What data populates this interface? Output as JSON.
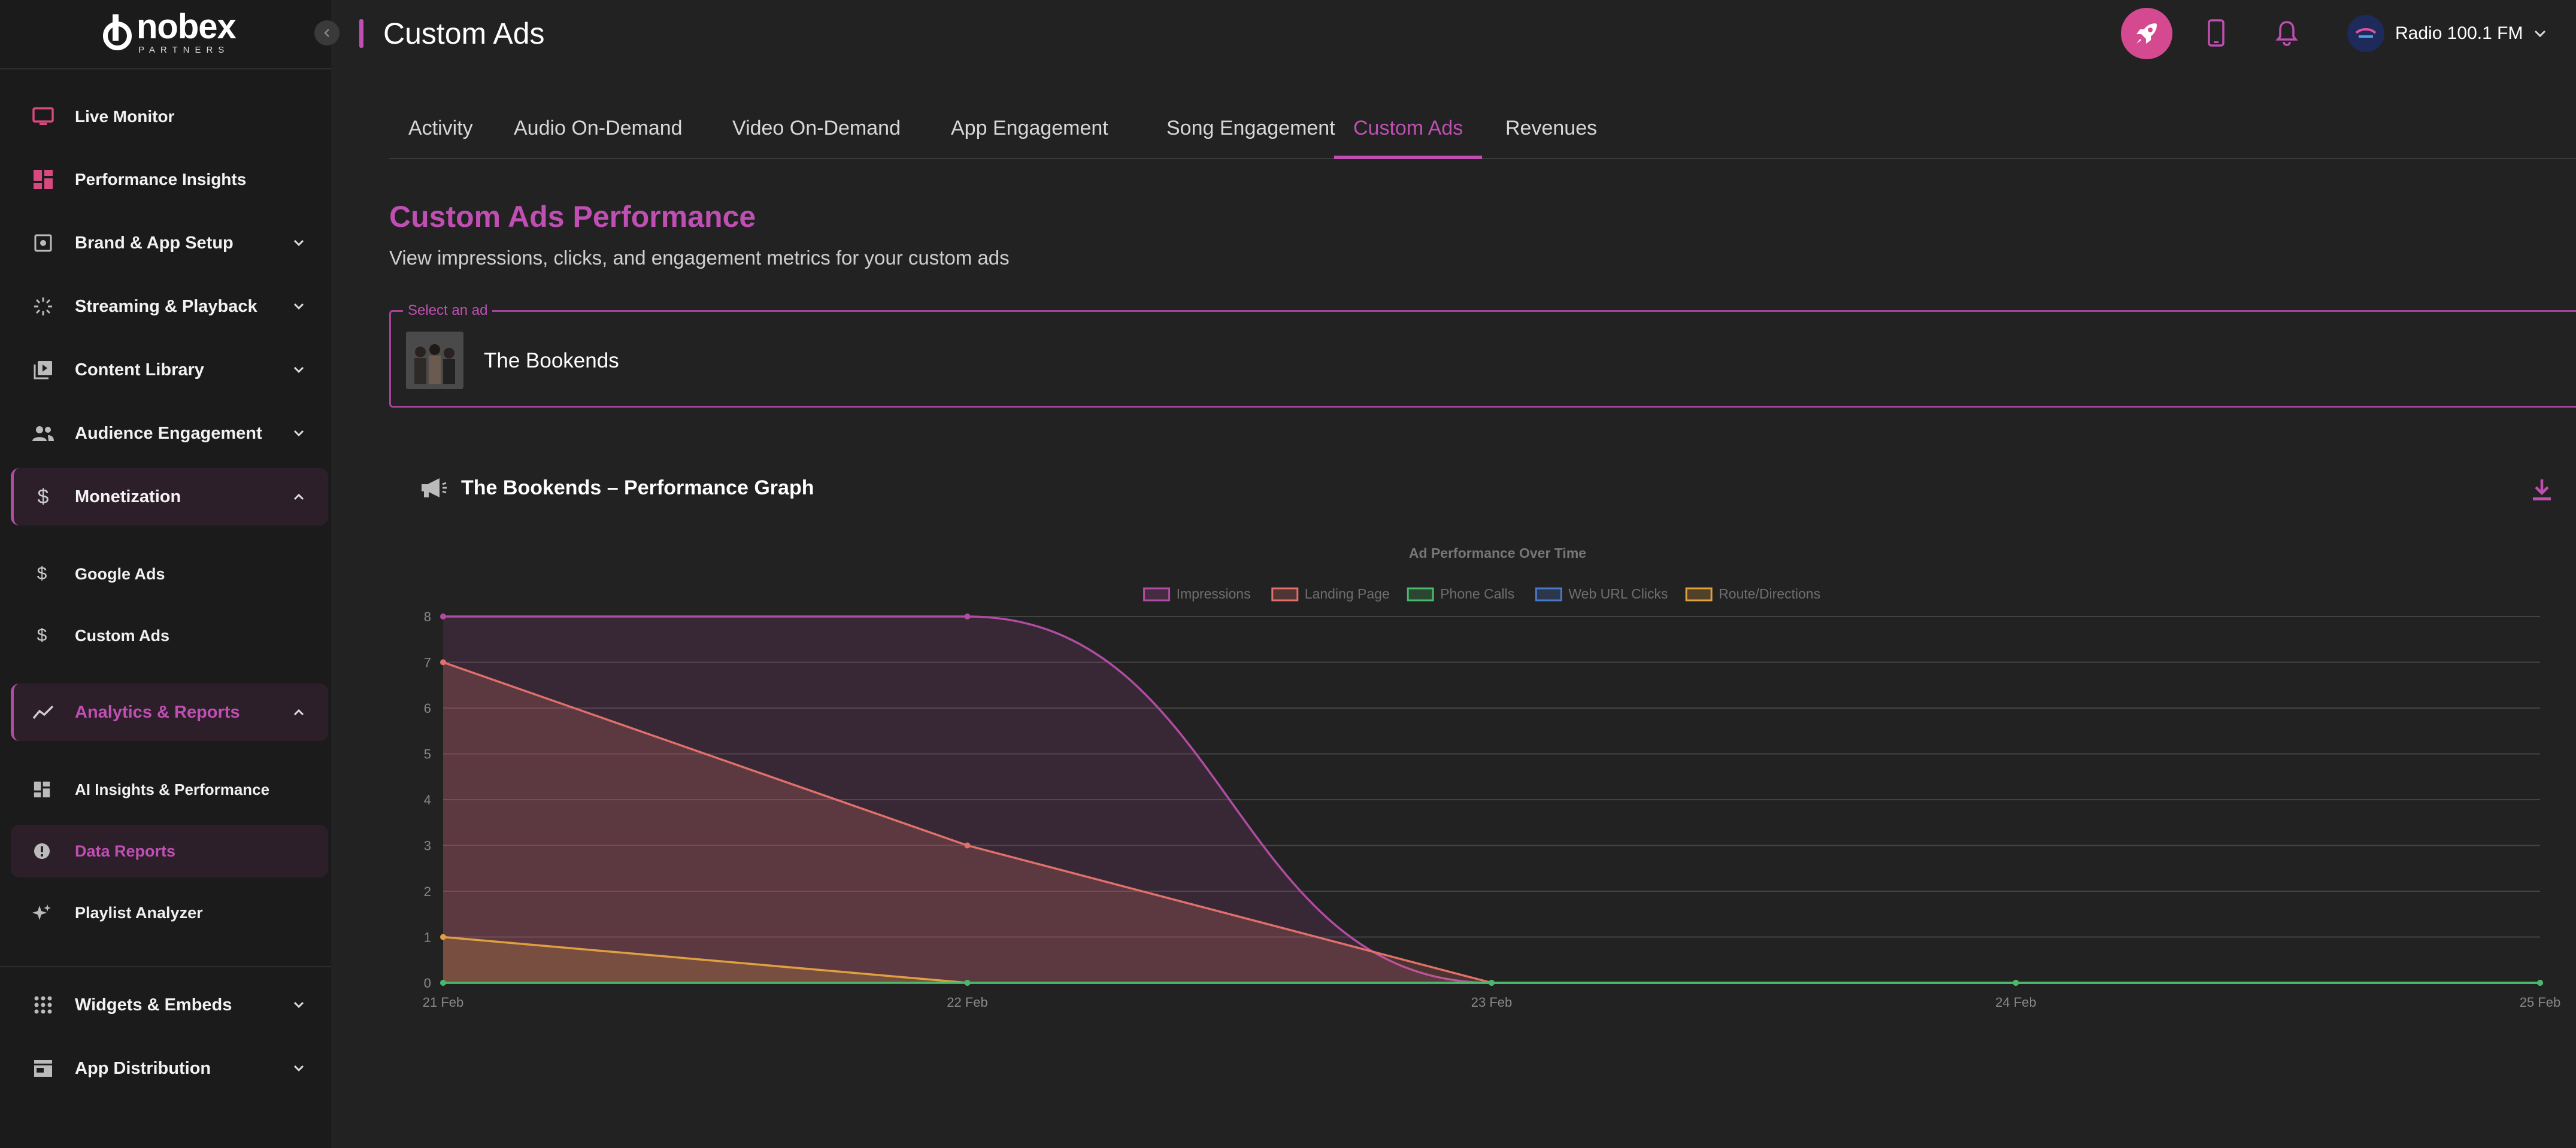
{
  "brand": {
    "name": "nobex",
    "sub": "PARTNERS"
  },
  "sidebar": {
    "items": [
      {
        "label": "Live Monitor",
        "icon": "monitor-icon"
      },
      {
        "label": "Performance Insights",
        "icon": "dashboard-icon"
      },
      {
        "label": "Brand & App Setup",
        "icon": "brand-setup-icon"
      },
      {
        "label": "Streaming & Playback",
        "icon": "streaming-icon"
      },
      {
        "label": "Content Library",
        "icon": "library-icon"
      },
      {
        "label": "Audience Engagement",
        "icon": "people-icon"
      },
      {
        "label": "Monetization",
        "icon": "dollar-icon"
      },
      {
        "label": "Google Ads",
        "icon": "dollar-icon"
      },
      {
        "label": "Custom Ads",
        "icon": "dollar-icon"
      },
      {
        "label": "Analytics & Reports",
        "icon": "analytics-icon"
      },
      {
        "label": "AI Insights & Performance",
        "icon": "dashboard-icon"
      },
      {
        "label": "Data Reports",
        "icon": "alert-circle-icon"
      },
      {
        "label": "Playlist Analyzer",
        "icon": "sparkle-icon"
      },
      {
        "label": "Widgets & Embeds",
        "icon": "grid-icon"
      },
      {
        "label": "App Distribution",
        "icon": "store-icon"
      }
    ]
  },
  "header": {
    "title": "Custom Ads",
    "station": "Radio 100.1 FM"
  },
  "tabs": [
    {
      "label": "Activity"
    },
    {
      "label": "Audio On-Demand"
    },
    {
      "label": "Video On-Demand"
    },
    {
      "label": "App Engagement"
    },
    {
      "label": "Song Engagement"
    },
    {
      "label": "Custom Ads",
      "active": true
    },
    {
      "label": "Revenues"
    }
  ],
  "main": {
    "title": "Custom Ads Performance",
    "subtitle": "View impressions, clicks, and engagement metrics for your custom ads",
    "select": {
      "label": "Select an ad",
      "value": "The Bookends"
    },
    "graph_title": "The Bookends – Performance Graph"
  },
  "colors": {
    "accent": "#c04fb3",
    "impressions": "#b04da3",
    "landing": "#e0706a",
    "phone": "#49b86a",
    "web": "#4a78c8",
    "route": "#e0a040"
  },
  "chart_data": {
    "type": "area",
    "title": "Ad Performance Over Time",
    "categories": [
      "21 Feb",
      "22 Feb",
      "23 Feb",
      "24 Feb",
      "25 Feb"
    ],
    "ylim": [
      0,
      8
    ],
    "yticks": [
      "0",
      "1",
      "2",
      "3",
      "4",
      "5",
      "6",
      "7",
      "8"
    ],
    "grid": true,
    "legend_position": "top",
    "series": [
      {
        "name": "Impressions",
        "values": [
          8,
          8,
          0,
          0,
          0
        ],
        "color": "#b04da3"
      },
      {
        "name": "Landing Page",
        "values": [
          7,
          3,
          0,
          0,
          0
        ],
        "color": "#e0706a"
      },
      {
        "name": "Phone Calls",
        "values": [
          0,
          0,
          0,
          0,
          0
        ],
        "color": "#49b86a"
      },
      {
        "name": "Web URL Clicks",
        "values": [
          0,
          0,
          0,
          0,
          0
        ],
        "color": "#4a78c8"
      },
      {
        "name": "Route/Directions",
        "values": [
          1,
          0,
          0,
          0,
          0
        ],
        "color": "#e0a040"
      }
    ]
  }
}
